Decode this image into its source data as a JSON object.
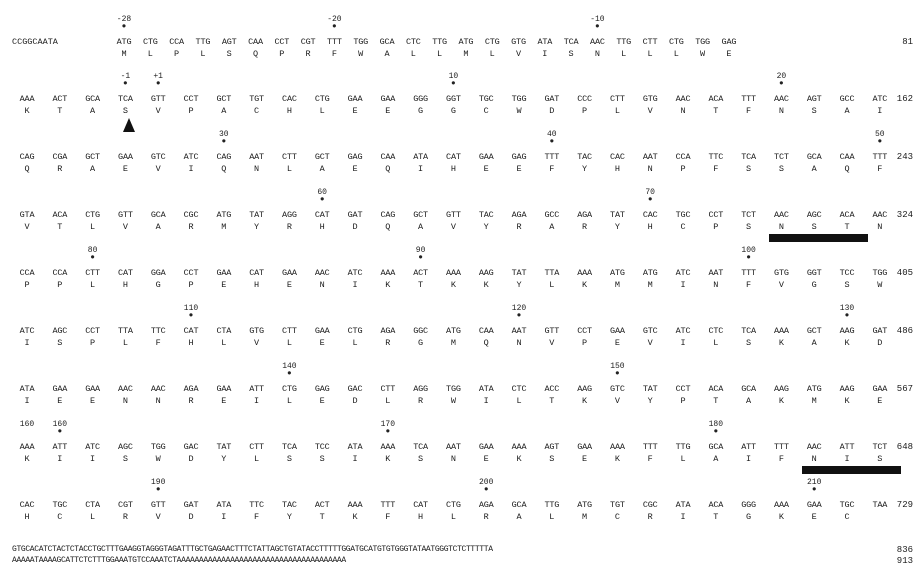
{
  "leader": "CCGGCAATA",
  "blocks": [
    {
      "end": "81",
      "codons": [
        "ATG",
        "CTG",
        "CCA",
        "TTG",
        "AGT",
        "CAA",
        "CCT",
        "CGT",
        "TTT",
        "TGG",
        "GCA",
        "CTC",
        "TTG",
        "ATG",
        "CTG",
        "GTG",
        "ATA",
        "TCA",
        "AAC",
        "TTG",
        "CTT",
        "CTG",
        "TGG",
        "GAG"
      ],
      "aas": [
        "M",
        "L",
        "P",
        "L",
        "S",
        "Q",
        "P",
        "R",
        "F",
        "W",
        "A",
        "L",
        "L",
        "M",
        "L",
        "V",
        "I",
        "S",
        "N",
        "L",
        "L",
        "L",
        "W",
        "E"
      ],
      "marks": [
        {
          "col": 0,
          "label": "-28",
          "dot": true
        },
        {
          "col": 8,
          "label": "-20",
          "dot": true
        },
        {
          "col": 18,
          "label": "-10",
          "dot": true
        }
      ]
    },
    {
      "end": "162",
      "codons": [
        "AAA",
        "ACT",
        "GCA",
        "TCA",
        "GTT",
        "CCT",
        "GCT",
        "TGT",
        "CAC",
        "CTG",
        "GAA",
        "GAA",
        "GGG",
        "GGT",
        "TGC",
        "TGG",
        "GAT",
        "CCC",
        "CTT",
        "GTG",
        "AAC",
        "ACA",
        "TTT",
        "AAC",
        "AGT",
        "GCC",
        "ATC"
      ],
      "aas": [
        "K",
        "T",
        "A",
        "S",
        "V",
        "P",
        "A",
        "C",
        "H",
        "L",
        "E",
        "E",
        "G",
        "G",
        "C",
        "W",
        "D",
        "P",
        "L",
        "V",
        "N",
        "T",
        "F",
        "N",
        "S",
        "A",
        "I"
      ],
      "marks": [
        {
          "col": 3,
          "label": "-1",
          "dot": true
        },
        {
          "col": 4,
          "label": "+1",
          "dot": true
        },
        {
          "col": 13,
          "label": "10",
          "dot": true
        },
        {
          "col": 23,
          "label": "20",
          "dot": true
        }
      ]
    },
    {
      "end": "243",
      "codons": [
        "CAG",
        "CGA",
        "GCT",
        "GAA",
        "GTC",
        "ATC",
        "CAG",
        "AAT",
        "CTT",
        "GCT",
        "GAG",
        "CAA",
        "ATA",
        "CAT",
        "GAA",
        "GAG",
        "TTT",
        "TAC",
        "CAC",
        "AAT",
        "CCA",
        "TTC",
        "TCA",
        "TCT",
        "GCA",
        "CAA",
        "TTT"
      ],
      "aas": [
        "Q",
        "R",
        "A",
        "E",
        "V",
        "I",
        "Q",
        "N",
        "L",
        "A",
        "E",
        "Q",
        "I",
        "H",
        "E",
        "E",
        "F",
        "Y",
        "H",
        "N",
        "P",
        "F",
        "S",
        "S",
        "A",
        "Q",
        "F"
      ],
      "marks": [
        {
          "col": 6,
          "label": "30",
          "dot": true
        },
        {
          "col": 16,
          "label": "40",
          "dot": true
        },
        {
          "col": 26,
          "label": "50",
          "dot": true
        }
      ]
    },
    {
      "end": "324",
      "codons": [
        "GTA",
        "ACA",
        "CTG",
        "GTT",
        "GCA",
        "CGC",
        "ATG",
        "TAT",
        "AGG",
        "CAT",
        "GAT",
        "CAG",
        "GCT",
        "GTT",
        "TAC",
        "AGA",
        "GCC",
        "AGA",
        "TAT",
        "CAC",
        "TGC",
        "CCT",
        "TCT",
        "AAC",
        "AGC",
        "ACA",
        "AAC"
      ],
      "aas": [
        "V",
        "T",
        "L",
        "V",
        "A",
        "R",
        "M",
        "Y",
        "R",
        "H",
        "D",
        "Q",
        "A",
        "V",
        "Y",
        "R",
        "A",
        "R",
        "Y",
        "H",
        "C",
        "P",
        "S",
        "N",
        "S",
        "T",
        "N"
      ],
      "marks": [
        {
          "col": 9,
          "label": "60",
          "dot": true
        },
        {
          "col": 19,
          "label": "70",
          "dot": true
        }
      ]
    },
    {
      "end": "405",
      "codons": [
        "CCA",
        "CCA",
        "CTT",
        "CAT",
        "GGA",
        "CCT",
        "GAA",
        "CAT",
        "GAA",
        "AAC",
        "ATC",
        "AAA",
        "ACT",
        "AAA",
        "AAG",
        "TAT",
        "TTA",
        "AAA",
        "ATG",
        "ATG",
        "ATC",
        "AAT",
        "TTT",
        "GTG",
        "GGT",
        "TCC",
        "TGG"
      ],
      "aas": [
        "P",
        "P",
        "L",
        "H",
        "G",
        "P",
        "E",
        "H",
        "E",
        "N",
        "I",
        "K",
        "T",
        "K",
        "K",
        "Y",
        "L",
        "K",
        "M",
        "M",
        "I",
        "N",
        "F",
        "V",
        "G",
        "S",
        "W"
      ],
      "marks": [
        {
          "col": 2,
          "label": "80",
          "dot": true
        },
        {
          "col": 12,
          "label": "90",
          "dot": true
        },
        {
          "col": 22,
          "label": "100",
          "dot": true
        }
      ]
    },
    {
      "end": "486",
      "codons": [
        "ATC",
        "AGC",
        "CCT",
        "TTA",
        "TTC",
        "CAT",
        "CTA",
        "GTG",
        "CTT",
        "GAA",
        "CTG",
        "AGA",
        "GGC",
        "ATG",
        "CAA",
        "AAT",
        "GTT",
        "CCT",
        "GAA",
        "GTC",
        "ATC",
        "CTC",
        "TCA",
        "AAA",
        "GCT",
        "AAG",
        "GAT"
      ],
      "aas": [
        "I",
        "S",
        "P",
        "L",
        "F",
        "H",
        "L",
        "V",
        "L",
        "E",
        "L",
        "R",
        "G",
        "M",
        "Q",
        "N",
        "V",
        "P",
        "E",
        "V",
        "I",
        "L",
        "S",
        "K",
        "A",
        "K",
        "D"
      ],
      "marks": [
        {
          "col": 5,
          "label": "110",
          "dot": true
        },
        {
          "col": 15,
          "label": "120",
          "dot": true
        },
        {
          "col": 25,
          "label": "130",
          "dot": true
        }
      ]
    },
    {
      "end": "567",
      "codons": [
        "ATA",
        "GAA",
        "GAA",
        "AAC",
        "AAC",
        "AGA",
        "GAA",
        "ATT",
        "CTG",
        "GAG",
        "GAC",
        "CTT",
        "AGG",
        "TGG",
        "ATA",
        "CTC",
        "ACC",
        "AAG",
        "GTC",
        "TAT",
        "CCT",
        "ACA",
        "GCA",
        "AAG",
        "ATG",
        "AAG",
        "GAA"
      ],
      "aas": [
        "I",
        "E",
        "E",
        "N",
        "N",
        "R",
        "E",
        "I",
        "L",
        "E",
        "D",
        "L",
        "R",
        "W",
        "I",
        "L",
        "T",
        "K",
        "V",
        "Y",
        "P",
        "T",
        "A",
        "K",
        "M",
        "K",
        "E"
      ],
      "marks": [
        {
          "col": 8,
          "label": "140",
          "dot": true
        },
        {
          "col": 18,
          "label": "150",
          "dot": true
        }
      ]
    },
    {
      "end": "648",
      "codons": [
        "AAA",
        "ATT",
        "ATC",
        "AGC",
        "TGG",
        "GAC",
        "TAT",
        "CTT",
        "TCA",
        "TCC",
        "ATA",
        "AAA",
        "TCA",
        "AAT",
        "GAA",
        "AAA",
        "AGT",
        "GAA",
        "AAA",
        "TTT",
        "TTG",
        "GCA",
        "ATT",
        "TTT",
        "AAC",
        "ATT",
        "TCT"
      ],
      "aas": [
        "K",
        "I",
        "I",
        "S",
        "W",
        "D",
        "Y",
        "L",
        "S",
        "S",
        "I",
        "K",
        "S",
        "N",
        "E",
        "K",
        "S",
        "E",
        "K",
        "F",
        "L",
        "A",
        "I",
        "F",
        "N",
        "I",
        "S"
      ],
      "marks": [
        {
          "col": 0,
          "label": "160",
          "dot": false
        },
        {
          "col": 1,
          "label": "160",
          "dot": true
        },
        {
          "col": 11,
          "label": "170",
          "dot": true
        },
        {
          "col": 21,
          "label": "180",
          "dot": true
        }
      ]
    },
    {
      "end": "729",
      "codons": [
        "CAC",
        "TGC",
        "CTA",
        "CGT",
        "GTT",
        "GAT",
        "ATA",
        "TTC",
        "TAC",
        "ACT",
        "AAA",
        "TTT",
        "CAT",
        "CTG",
        "AGA",
        "GCA",
        "TTG",
        "ATG",
        "TGT",
        "CGC",
        "ATA",
        "ACA",
        "GGG",
        "AAA",
        "GAA",
        "TGC",
        "TAA"
      ],
      "aas": [
        "H",
        "C",
        "L",
        "R",
        "V",
        "D",
        "I",
        "F",
        "Y",
        "T",
        "K",
        "F",
        "H",
        "L",
        "R",
        "A",
        "L",
        "M",
        "C",
        "R",
        "I",
        "T",
        "G",
        "K",
        "E",
        "C",
        ""
      ],
      "marks": [
        {
          "col": 4,
          "label": "190",
          "dot": true
        },
        {
          "col": 14,
          "label": "200",
          "dot": true
        },
        {
          "col": 24,
          "label": "210",
          "dot": true
        }
      ]
    }
  ],
  "noncoding": [
    {
      "text": "GTGCACATCTACTCTACCTGCTTTGAAGGTAGGGTAGATTTGCTGAGAACTTTCTATTAGCTGTATACCTTTTTGGATGCATGTGTGGGTATAATGGGTCTCTTTTTA",
      "end": "836"
    },
    {
      "text": "AAAAATAAAAGCATTCTCTTTGGAAATGTCCAAATCTAAAAAAAAAAAAAAAAAAAAAAAAAAAAAAAAAAAAAA",
      "end": "913"
    }
  ]
}
